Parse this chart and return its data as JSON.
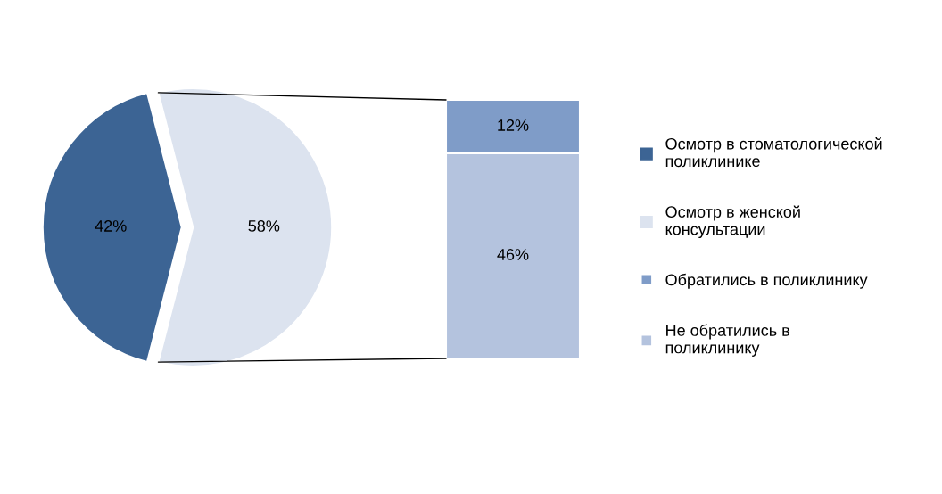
{
  "chart_data": [
    {
      "type": "pie",
      "categories": [
        "Осмотр в стоматологической поликлинике",
        "Осмотр в женской консультации"
      ],
      "values": [
        42,
        58
      ],
      "value_labels": [
        "42%",
        "58%"
      ],
      "colors": [
        "#3c6494",
        "#dce3ef"
      ],
      "data_labels": true,
      "legend": "right"
    },
    {
      "type": "bar",
      "stacked": true,
      "categories": [
        null
      ],
      "data_labels": true,
      "legend": "right",
      "series": [
        {
          "name": "Не обратились в поликлинику",
          "color": "#b4c3de",
          "values": [
            46
          ],
          "value_labels": [
            "46%"
          ]
        },
        {
          "name": "Обратились в поликлинику",
          "color": "#7f9cc8",
          "values": [
            12
          ],
          "value_labels": [
            "12%"
          ]
        }
      ]
    }
  ]
}
